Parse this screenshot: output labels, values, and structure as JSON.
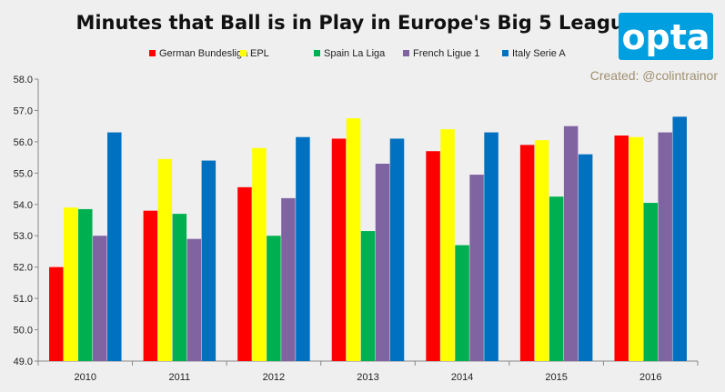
{
  "chart_data": {
    "type": "bar",
    "title": "Minutes that Ball is in Play in Europe's Big 5 Leagues",
    "categories": [
      "2010",
      "2011",
      "2012",
      "2013",
      "2014",
      "2015",
      "2016"
    ],
    "series": [
      {
        "name": "German Bundesliga",
        "color": "#ff0000",
        "values": [
          52.0,
          53.8,
          54.55,
          56.1,
          55.7,
          55.9,
          56.2
        ]
      },
      {
        "name": "EPL",
        "color": "#ffff00",
        "values": [
          53.9,
          55.45,
          55.8,
          56.75,
          56.4,
          56.05,
          56.15
        ]
      },
      {
        "name": "Spain La Liga",
        "color": "#00b050",
        "values": [
          53.85,
          53.7,
          53.0,
          53.15,
          52.7,
          54.25,
          54.05
        ]
      },
      {
        "name": "French Ligue 1",
        "color": "#8064a2",
        "values": [
          53.0,
          52.9,
          54.2,
          55.3,
          54.95,
          56.5,
          56.3
        ]
      },
      {
        "name": "Italy Serie A",
        "color": "#0070c0",
        "values": [
          56.3,
          55.4,
          56.15,
          56.1,
          56.3,
          55.6,
          56.8
        ]
      }
    ],
    "ylim": [
      49.0,
      58.0
    ],
    "yticks": [
      "49.0",
      "50.0",
      "51.0",
      "52.0",
      "53.0",
      "54.0",
      "55.0",
      "56.0",
      "57.0",
      "58.0"
    ],
    "xlabel": "",
    "ylabel": "",
    "grid": false,
    "legend": "top",
    "annotation": "Created: @colintrainor"
  },
  "logo": {
    "text": "opta",
    "color": "#00a0e0"
  }
}
